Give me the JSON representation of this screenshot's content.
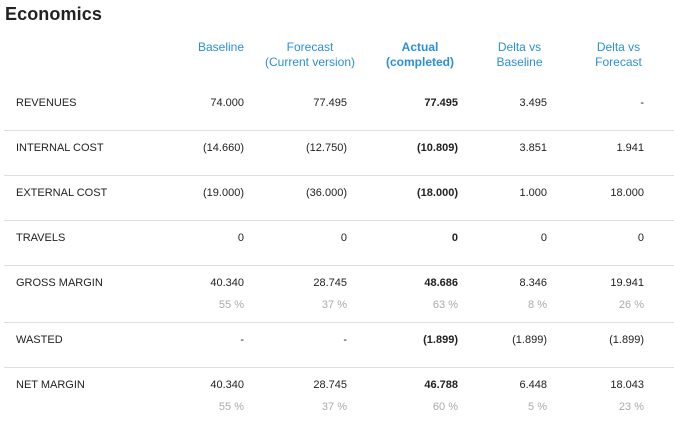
{
  "title": "Economics",
  "headers": {
    "baseline": [
      "Baseline"
    ],
    "forecast": [
      "Forecast",
      "(Current version)"
    ],
    "actual": [
      "Actual",
      "(completed)"
    ],
    "delta_baseline": [
      "Delta vs",
      "Baseline"
    ],
    "delta_forecast": [
      "Delta vs",
      "Forecast"
    ]
  },
  "rows": [
    {
      "label": "REVENUES",
      "baseline": "74.000",
      "forecast": "77.495",
      "actual": "77.495",
      "delta_baseline": "3.495",
      "delta_forecast": "-"
    },
    {
      "label": "INTERNAL COST",
      "baseline": "(14.660)",
      "forecast": "(12.750)",
      "actual": "(10.809)",
      "delta_baseline": "3.851",
      "delta_forecast": "1.941"
    },
    {
      "label": "EXTERNAL COST",
      "baseline": "(19.000)",
      "forecast": "(36.000)",
      "actual": "(18.000)",
      "delta_baseline": "1.000",
      "delta_forecast": "18.000"
    },
    {
      "label": "TRAVELS",
      "baseline": "0",
      "forecast": "0",
      "actual": "0",
      "delta_baseline": "0",
      "delta_forecast": "0"
    },
    {
      "label": "GROSS MARGIN",
      "baseline": "40.340",
      "forecast": "28.745",
      "actual": "48.686",
      "delta_baseline": "8.346",
      "delta_forecast": "19.941",
      "pct": {
        "baseline": "55 %",
        "forecast": "37 %",
        "actual": "63 %",
        "delta_baseline": "8 %",
        "delta_forecast": "26 %"
      }
    },
    {
      "label": "WASTED",
      "baseline": "-",
      "forecast": "-",
      "actual": "(1.899)",
      "delta_baseline": "(1.899)",
      "delta_forecast": "(1.899)"
    },
    {
      "label": "NET MARGIN",
      "baseline": "40.340",
      "forecast": "28.745",
      "actual": "46.788",
      "delta_baseline": "6.448",
      "delta_forecast": "18.043",
      "pct": {
        "baseline": "55 %",
        "forecast": "37 %",
        "actual": "60 %",
        "delta_baseline": "5 %",
        "delta_forecast": "23 %"
      }
    }
  ]
}
